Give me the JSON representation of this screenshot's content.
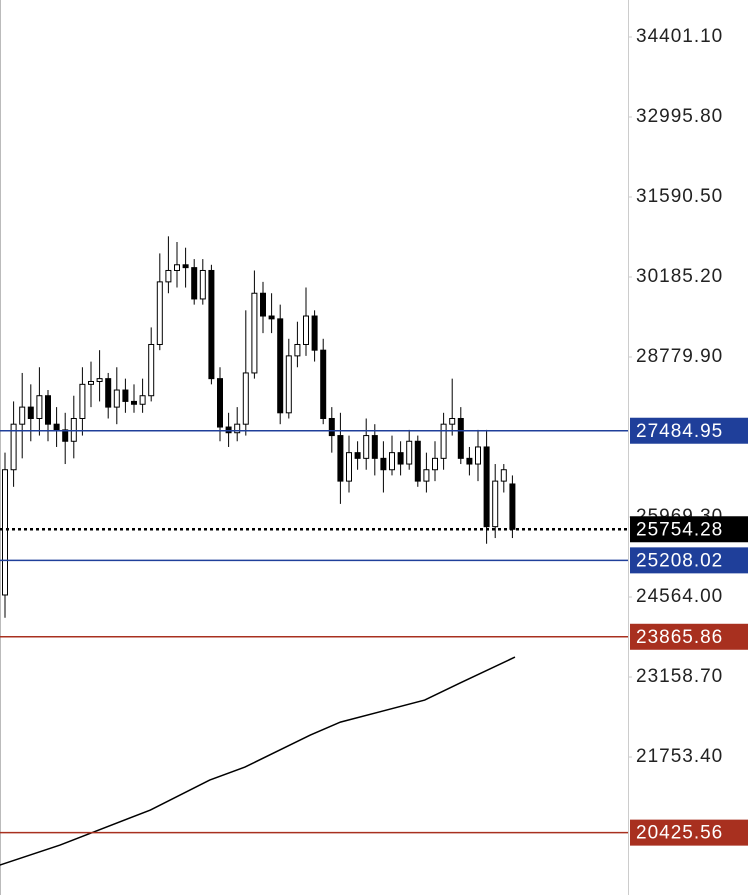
{
  "chart_data": {
    "type": "candlestick",
    "ylim": [
      19330,
      35051
    ],
    "yticks": [
      {
        "value": 34401.1,
        "label": "34401.10"
      },
      {
        "value": 32995.8,
        "label": "32995.80"
      },
      {
        "value": 31590.5,
        "label": "31590.50"
      },
      {
        "value": 30185.2,
        "label": "30185.20"
      },
      {
        "value": 28779.9,
        "label": "28779.90"
      },
      {
        "value": 25969.3,
        "label": "25969.30"
      },
      {
        "value": 24564,
        "label": "24564.00"
      },
      {
        "value": 23158.7,
        "label": "23158.70"
      },
      {
        "value": 21753.4,
        "label": "21753.40"
      }
    ],
    "up_color": "#ffffff",
    "down_color": "#000000",
    "open": [
      24600,
      26800,
      27600,
      27900,
      27700,
      28100,
      27600,
      27500,
      27300,
      27700,
      28300,
      28350,
      28400,
      27900,
      28200,
      28000,
      27950,
      28100,
      29000,
      30100,
      30300,
      30400,
      30350,
      29800,
      30300,
      28400,
      27550,
      27450,
      27600,
      28500,
      29900,
      29500,
      29450,
      27800,
      28800,
      29000,
      29500,
      28900,
      27700,
      27400,
      26600,
      27100,
      27000,
      27400,
      27000,
      26800,
      27100,
      26900,
      27300,
      26600,
      26800,
      27000,
      27600,
      27700,
      27000,
      26900,
      27200,
      25800,
      26600,
      26550
    ],
    "high": [
      27100,
      28000,
      28500,
      28300,
      28600,
      28200,
      27900,
      27800,
      28100,
      28600,
      28700,
      28900,
      28500,
      28600,
      28400,
      28300,
      28400,
      29300,
      30600,
      30900,
      30800,
      30700,
      30500,
      30500,
      30400,
      28600,
      27800,
      27900,
      29600,
      30300,
      30100,
      29900,
      29700,
      29100,
      29400,
      30000,
      29600,
      29100,
      27900,
      27800,
      27400,
      27300,
      27700,
      27600,
      27300,
      27400,
      27300,
      27500,
      27400,
      27100,
      27300,
      27800,
      28400,
      27900,
      27200,
      27500,
      27500,
      26900,
      26900,
      26700
    ],
    "low": [
      24200,
      26500,
      27000,
      27300,
      27400,
      27300,
      27200,
      26900,
      27000,
      27400,
      27900,
      28000,
      27700,
      27600,
      27800,
      27800,
      27800,
      28000,
      28900,
      29900,
      30000,
      30000,
      29700,
      29700,
      28300,
      27300,
      27200,
      27300,
      27400,
      28400,
      29200,
      29200,
      27600,
      27700,
      28600,
      28800,
      28700,
      27600,
      27100,
      26200,
      26400,
      26800,
      26800,
      26700,
      26400,
      26700,
      26700,
      26800,
      26500,
      26400,
      26600,
      26800,
      27400,
      26900,
      26700,
      26600,
      25500,
      25600,
      26400,
      25600
    ],
    "close": [
      26800,
      27600,
      27900,
      27700,
      28100,
      27600,
      27500,
      27300,
      27700,
      28300,
      28350,
      28400,
      27900,
      28200,
      28000,
      27950,
      28100,
      29000,
      30100,
      30300,
      30400,
      30350,
      29800,
      30300,
      28400,
      27550,
      27450,
      27600,
      28500,
      29900,
      29500,
      29450,
      27800,
      28800,
      29000,
      29500,
      28900,
      27700,
      27400,
      26600,
      27100,
      27000,
      27400,
      27000,
      26800,
      27100,
      26900,
      27300,
      26600,
      26800,
      27000,
      27600,
      27700,
      27000,
      26900,
      27200,
      25800,
      26600,
      26800,
      25754.28
    ],
    "moving_average": {
      "color": "#000000",
      "x": [
        -0.6,
        6.4,
        16.9,
        23.8,
        27.9,
        35.5,
        39,
        48.8,
        52.9,
        59.3
      ],
      "values": [
        19856,
        20207,
        20822,
        21349,
        21577,
        22139,
        22367,
        22754,
        23052,
        23509
      ]
    },
    "levels": [
      {
        "value": 27484.95,
        "color": "#1f3f9a",
        "style": "solid"
      },
      {
        "value": 25754.28,
        "color": "#000000",
        "style": "dotted"
      },
      {
        "value": 25208.02,
        "color": "#1f3f9a",
        "style": "solid"
      },
      {
        "value": 23865.86,
        "color": "#a8301f",
        "style": "solid"
      },
      {
        "value": 20425.56,
        "color": "#a8301f",
        "style": "solid"
      }
    ]
  }
}
